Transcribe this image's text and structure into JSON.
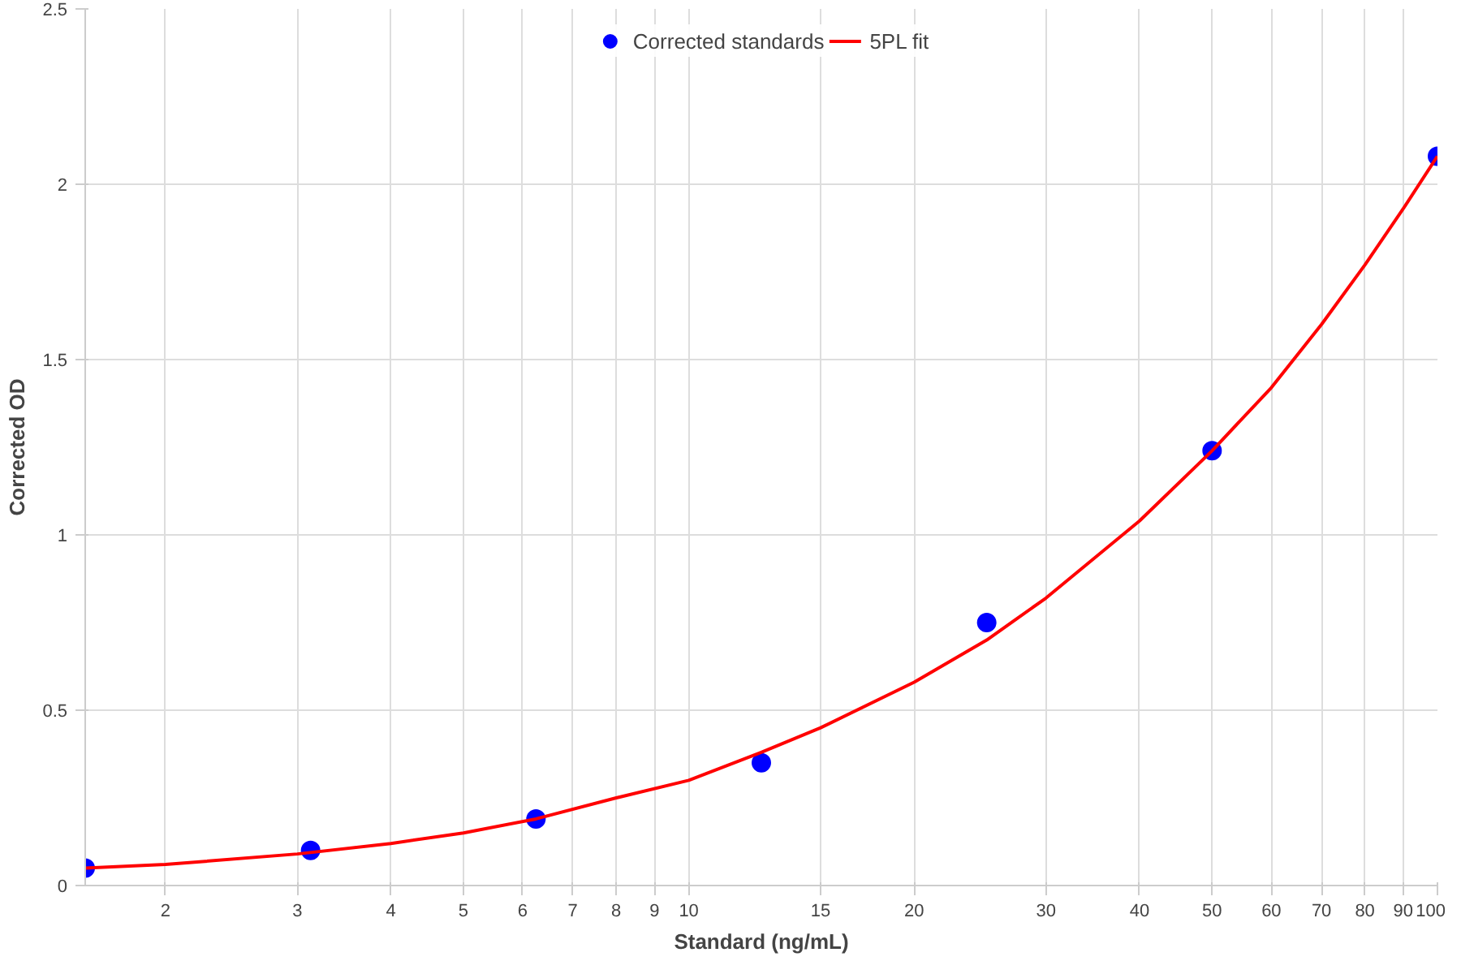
{
  "chart_data": {
    "type": "scatter",
    "xlabel": "Standard (ng/mL)",
    "ylabel": "Corrected OD",
    "log": "x",
    "xlim": [
      1.5625,
      100
    ],
    "xticks": [
      2,
      3,
      4,
      5,
      6,
      7,
      8,
      9,
      10,
      15,
      20,
      30,
      40,
      50,
      60,
      70,
      80,
      90,
      100
    ],
    "ylim": [
      0,
      2.5
    ],
    "yticks": [
      0,
      0.5,
      1,
      1.5,
      2,
      2.5
    ],
    "grid": true,
    "legend": "top",
    "series": [
      {
        "name": "Corrected standards",
        "marker": "circle",
        "color": "#0000ff",
        "x": [
          1.5625,
          3.125,
          6.25,
          12.5,
          25,
          50,
          100
        ],
        "values": [
          0.05,
          0.1,
          0.19,
          0.35,
          0.75,
          1.24,
          2.08
        ]
      },
      {
        "name": "5PL fit",
        "type": "line",
        "color": "#ff0000",
        "line_style": "solid",
        "x": [
          1.5625,
          2,
          3,
          4,
          5,
          6.25,
          8,
          10,
          12.5,
          15,
          20,
          25,
          30,
          40,
          50,
          60,
          70,
          80,
          90,
          100
        ],
        "values": [
          0.05,
          0.06,
          0.09,
          0.12,
          0.15,
          0.19,
          0.25,
          0.3,
          0.38,
          0.45,
          0.58,
          0.7,
          0.82,
          1.04,
          1.24,
          1.42,
          1.6,
          1.77,
          1.93,
          2.08
        ]
      }
    ]
  }
}
